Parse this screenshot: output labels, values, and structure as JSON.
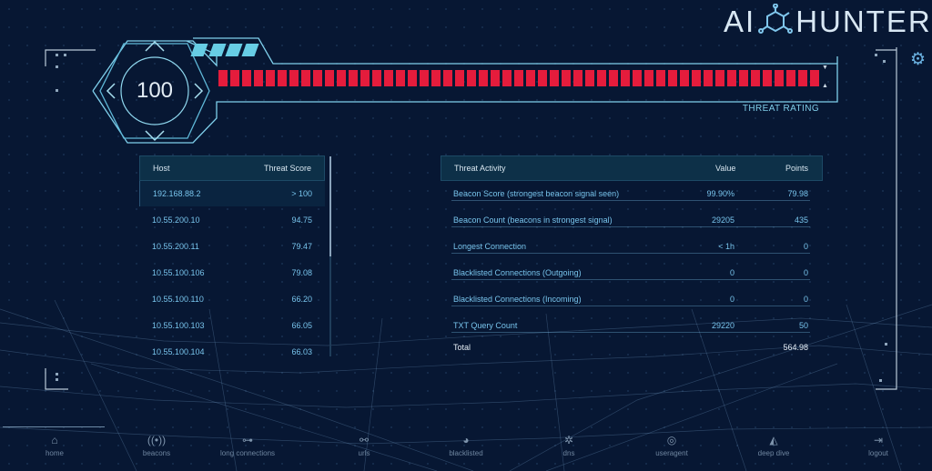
{
  "app": {
    "logo_left": "AI",
    "logo_right": "HUNTER",
    "settings_icon": "gear-icon"
  },
  "threat": {
    "score": "100",
    "label": "THREAT RATING",
    "bar_fill_fraction": 1.0,
    "bar_color": "#e51c3c"
  },
  "hosts": {
    "headers": {
      "host": "Host",
      "score": "Threat Score"
    },
    "rows": [
      {
        "host": "192.168.88.2",
        "score": "> 100",
        "selected": true
      },
      {
        "host": "10.55.200.10",
        "score": "94.75"
      },
      {
        "host": "10.55.200.11",
        "score": "79.47"
      },
      {
        "host": "10.55.100.106",
        "score": "79.08"
      },
      {
        "host": "10.55.100.110",
        "score": "66.20"
      },
      {
        "host": "10.55.100.103",
        "score": "66.05"
      },
      {
        "host": "10.55.100.104",
        "score": "66.03"
      }
    ]
  },
  "activity": {
    "headers": {
      "activity": "Threat Activity",
      "value": "Value",
      "points": "Points"
    },
    "rows": [
      {
        "activity": "Beacon Score (strongest beacon signal seen)",
        "value": "99.90%",
        "points": "79.98"
      },
      {
        "activity": "Beacon Count (beacons in strongest signal)",
        "value": "29205",
        "points": "435"
      },
      {
        "activity": "Longest Connection",
        "value": "< 1h",
        "points": "0"
      },
      {
        "activity": "Blacklisted Connections (Outgoing)",
        "value": "0",
        "points": "0"
      },
      {
        "activity": "Blacklisted Connections (Incoming)",
        "value": "0",
        "points": "0"
      },
      {
        "activity": "TXT Query Count",
        "value": "29220",
        "points": "50"
      }
    ],
    "total": {
      "label": "Total",
      "points": "564.98"
    }
  },
  "nav": [
    {
      "label": "home",
      "icon": "home-icon",
      "glyph": "⌂"
    },
    {
      "label": "beacons",
      "icon": "beacon-icon",
      "glyph": "((•))"
    },
    {
      "label": "long connections",
      "icon": "connections-icon",
      "glyph": "⊶"
    },
    {
      "label": "urls",
      "icon": "link-icon",
      "glyph": "⚯"
    },
    {
      "label": "blacklisted",
      "icon": "globe-icon",
      "glyph": "◕"
    },
    {
      "label": "dns",
      "icon": "dns-wheel-icon",
      "glyph": "✲"
    },
    {
      "label": "useragent",
      "icon": "fingerprint-icon",
      "glyph": "◎"
    },
    {
      "label": "deep dive",
      "icon": "shark-fin-icon",
      "glyph": "◭"
    },
    {
      "label": "logout",
      "icon": "logout-icon",
      "glyph": "⇥"
    }
  ]
}
